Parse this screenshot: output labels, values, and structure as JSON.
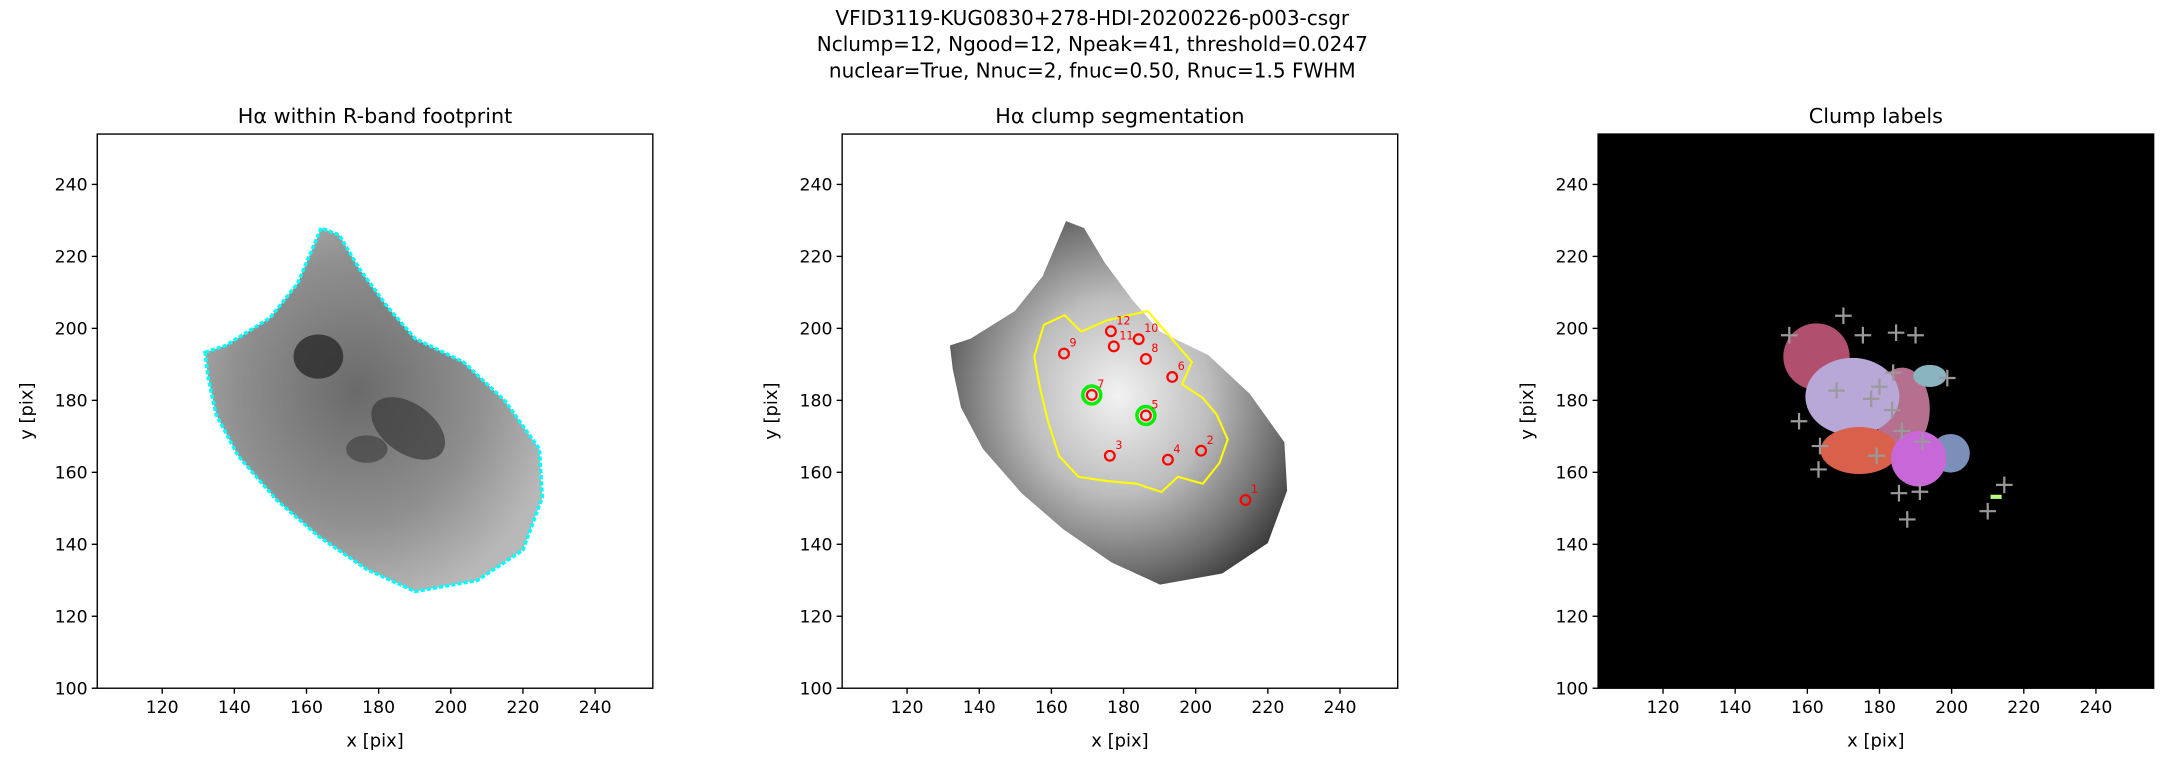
{
  "title": [
    "VFID3119-KUG0830+278-HDI-20200226-p003-csgr",
    "Nclump=12, Ngood=12, Npeak=41, threshold=0.0247",
    "nuclear=True, Nnuc=2, fnuc=0.50, Rnuc=1.5 FWHM"
  ],
  "chart_data": [
    {
      "type": "image",
      "title": "Hα within R-band footprint",
      "xlabel": "x [pix]",
      "ylabel": "y [pix]",
      "xlim": [
        102,
        256
      ],
      "ylim": [
        100,
        254
      ],
      "xticks": [
        120,
        140,
        160,
        180,
        200,
        220,
        240
      ],
      "yticks": [
        100,
        120,
        140,
        160,
        180,
        200,
        220,
        240
      ],
      "contour_color": "#00ffff"
    },
    {
      "type": "scatter",
      "title": "Hα clump segmentation",
      "xlabel": "x [pix]",
      "ylabel": "y [pix]",
      "xlim": [
        102,
        256
      ],
      "ylim": [
        100,
        254
      ],
      "xticks": [
        120,
        140,
        160,
        180,
        200,
        220,
        240
      ],
      "yticks": [
        100,
        120,
        140,
        160,
        180,
        200,
        220,
        240
      ],
      "x": [
        213.8,
        201.5,
        176.2,
        192.3,
        186.2,
        193.5,
        171.2,
        186.2,
        163.5,
        184.2,
        177.3,
        176.5
      ],
      "y": [
        152.3,
        166,
        164.6,
        163.5,
        175.8,
        186.5,
        181.5,
        191.5,
        193,
        197,
        195,
        199.2
      ],
      "point_labels": [
        "1",
        "2",
        "3",
        "4",
        "5",
        "6",
        "7",
        "8",
        "9",
        "10",
        "11",
        "12"
      ],
      "nuclear": [
        false,
        false,
        false,
        false,
        true,
        false,
        true,
        false,
        false,
        false,
        false,
        false
      ],
      "color": "#ff0000",
      "nuclear_color": "#00ee00",
      "contour_color": "#ffff00"
    },
    {
      "type": "peaks",
      "title": "Clump labels",
      "xlabel": "x [pix]",
      "ylabel": "y [pix]",
      "xlim": [
        102,
        256
      ],
      "ylim": [
        100,
        254
      ],
      "xticks": [
        120,
        140,
        160,
        180,
        200,
        220,
        240
      ],
      "yticks": [
        100,
        120,
        140,
        160,
        180,
        200,
        220,
        240
      ],
      "x": [
        155.0,
        170.0,
        175.4,
        184.6,
        190.0,
        198.8,
        157.7,
        168.1,
        177.7,
        183.5,
        186.2,
        191.9,
        179.2,
        163.5,
        163.1,
        185.4,
        191.2,
        187.7,
        210.0,
        214.6,
        183.8,
        180.0
      ],
      "y": [
        198.1,
        203.5,
        198.1,
        198.8,
        198.1,
        186.2,
        174.2,
        182.7,
        180.4,
        177.3,
        171.5,
        168.5,
        164.6,
        167.3,
        160.8,
        154.2,
        154.6,
        146.9,
        149.2,
        156.5,
        187.7,
        183.8
      ],
      "color": "#9a9a9a",
      "background": "#000000"
    }
  ]
}
